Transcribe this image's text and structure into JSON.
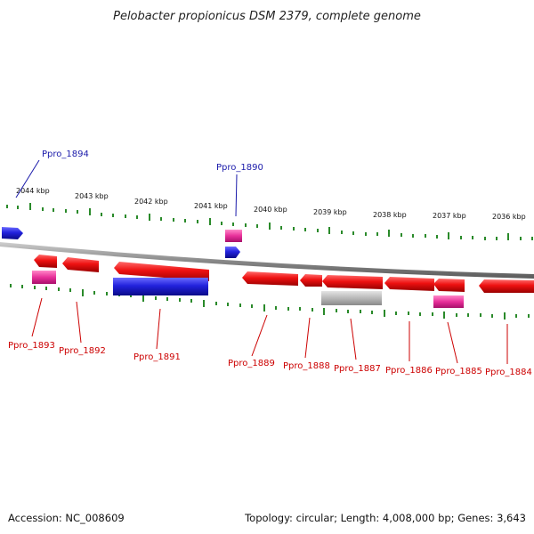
{
  "title": "Pelobacter propionicus DSM 2379, complete genome",
  "footer": {
    "accession": "Accession: NC_008609",
    "summary": "Topology: circular; Length: 4,008,000 bp; Genes: 3,643"
  },
  "colors": {
    "forward": "#ee1111",
    "reverse": "#2222dd",
    "rna": "#e8309a",
    "pseudo": "#b8b8b8",
    "tick": "#2a8a2a",
    "axis": "#888888",
    "label_forward": "#cc0000",
    "label_reverse": "#1a1aaa"
  },
  "scale_labels": [
    "2044 kbp",
    "2043 kbp",
    "2042 kbp",
    "2041 kbp",
    "2040 kbp",
    "2039 kbp",
    "2038 kbp",
    "2037 kbp",
    "2036 kbp"
  ],
  "gene_labels": [
    {
      "name": "Ppro_1894",
      "strand": "reverse"
    },
    {
      "name": "Ppro_1890",
      "strand": "reverse"
    },
    {
      "name": "Ppro_1893",
      "strand": "forward"
    },
    {
      "name": "Ppro_1892",
      "strand": "forward"
    },
    {
      "name": "Ppro_1891",
      "strand": "forward"
    },
    {
      "name": "Ppro_1889",
      "strand": "forward"
    },
    {
      "name": "Ppro_1888",
      "strand": "forward"
    },
    {
      "name": "Ppro_1887",
      "strand": "forward"
    },
    {
      "name": "Ppro_1886",
      "strand": "forward"
    },
    {
      "name": "Ppro_1885",
      "strand": "forward"
    },
    {
      "name": "Ppro_1884",
      "strand": "forward"
    }
  ]
}
